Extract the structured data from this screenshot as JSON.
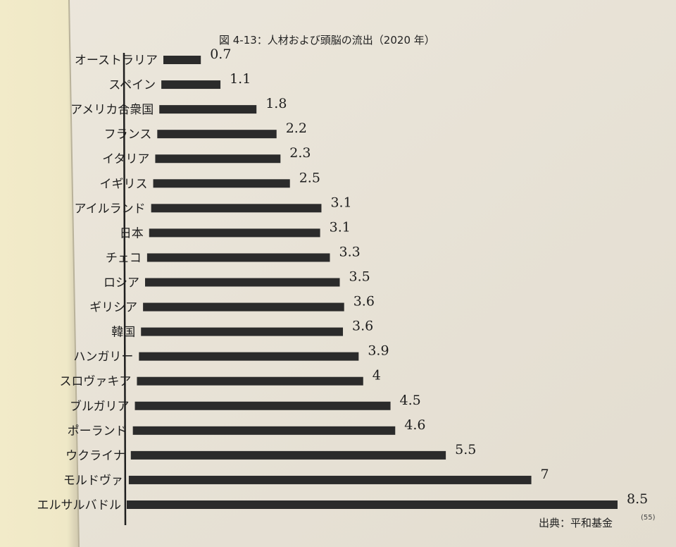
{
  "chart_data": {
    "type": "bar",
    "orientation": "horizontal",
    "title": "図 4-13：人材および頭脳の流出（2020 年）",
    "categories": [
      "オーストラリア",
      "スペイン",
      "アメリカ合衆国",
      "フランス",
      "イタリア",
      "イギリス",
      "アイルランド",
      "日本",
      "チェコ",
      "ロシア",
      "ギリシア",
      "韓国",
      "ハンガリー",
      "スロヴァキア",
      "ブルガリア",
      "ポーランド",
      "ウクライナ",
      "モルドヴァ",
      "エルサルバドル"
    ],
    "values": [
      0.7,
      1.1,
      1.8,
      2.2,
      2.3,
      2.5,
      3.1,
      3.1,
      3.3,
      3.5,
      3.6,
      3.6,
      3.9,
      4,
      4.5,
      4.6,
      5.5,
      7,
      8.5
    ],
    "value_labels": [
      "0.7",
      "1.1",
      "1.8",
      "2.2",
      "2.3",
      "2.5",
      "3.1",
      "3.1",
      "3.3",
      "3.5",
      "3.6",
      "3.6",
      "3.9",
      "4",
      "4.5",
      "4.6",
      "5.5",
      "7",
      "8.5"
    ],
    "bar_color": "#2b2b2b",
    "grid": false,
    "legend": "none",
    "source": "出典：平和基金",
    "source_ref": "(55)"
  }
}
